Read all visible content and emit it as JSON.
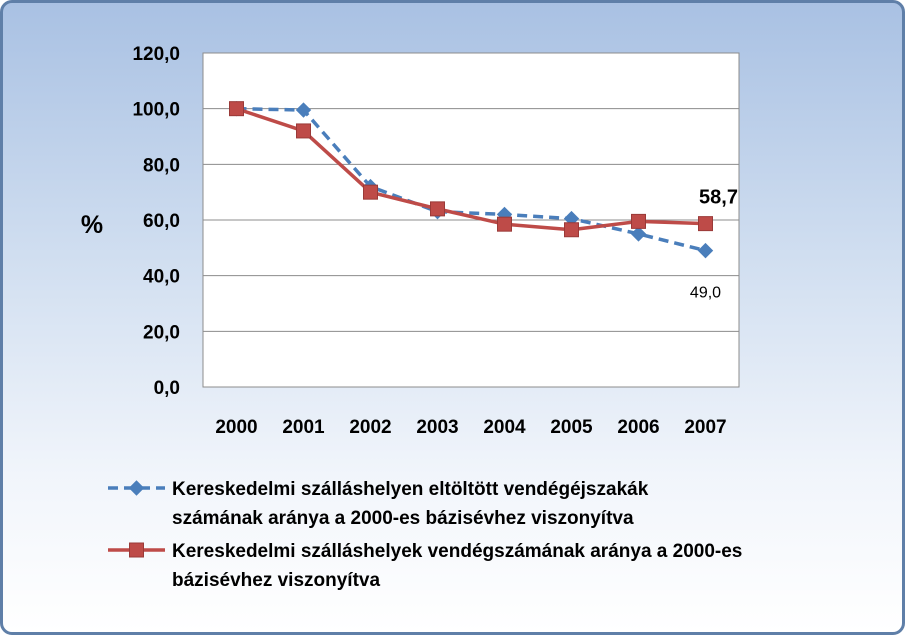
{
  "chart_data": {
    "type": "line",
    "ylabel": "%",
    "ylim": [
      0,
      120
    ],
    "yticks": [
      "0,0",
      "20,0",
      "40,0",
      "60,0",
      "80,0",
      "100,0",
      "120,0"
    ],
    "categories": [
      "2000",
      "2001",
      "2002",
      "2003",
      "2004",
      "2005",
      "2006",
      "2007"
    ],
    "grid": true,
    "legend_position": "bottom",
    "series": [
      {
        "name": "Kereskedelmi szálláshelyen eltöltött vendégéjszakák számának aránya a 2000-es bázisévhez viszonyítva",
        "legend_lines": [
          "Kereskedelmi szálláshelyen eltöltött vendégéjszakák",
          "számának aránya a 2000-es bázisévhez viszonyítva"
        ],
        "values": [
          100.0,
          99.5,
          72.0,
          63.0,
          62.0,
          60.5,
          55.0,
          49.0
        ],
        "color": "#4a7ebb",
        "line_style": "dashed",
        "marker": "diamond",
        "data_label": "49,0"
      },
      {
        "name": "Kereskedelmi szálláshelyek vendégszámának aránya a 2000-es bázisévhez viszonyítva",
        "legend_lines": [
          "Kereskedelmi szálláshelyek vendégszámának aránya a 2000-es",
          "bázisévhez viszonyítva"
        ],
        "values": [
          100.0,
          92.0,
          70.0,
          64.0,
          58.5,
          56.5,
          59.5,
          58.7
        ],
        "color": "#be4b48",
        "line_style": "solid",
        "marker": "square",
        "data_label": "58,7"
      }
    ]
  }
}
